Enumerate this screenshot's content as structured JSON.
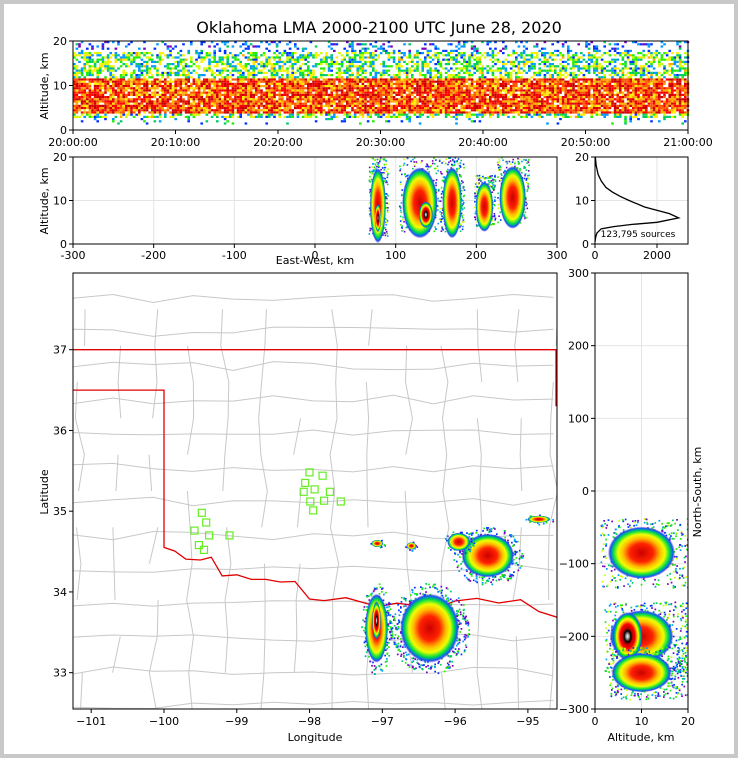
{
  "chart_data": [
    {
      "type": "heatmap",
      "panel": "time-height",
      "title": "Oklahoma LMA 2000-2100 UTC June 28, 2020",
      "ylabel": "Altitude, km",
      "ylim": [
        0,
        20
      ],
      "yticks": [
        "0",
        "10",
        "20"
      ],
      "xticks": [
        "20:00:00",
        "20:10:00",
        "20:20:00",
        "20:30:00",
        "20:40:00",
        "20:50:00",
        "21:00:00"
      ],
      "xlim_minutes": [
        0,
        60
      ],
      "density_band_km": [
        3,
        18
      ],
      "core_band_km": [
        4,
        12
      ]
    },
    {
      "type": "heatmap",
      "panel": "east-west-altitude",
      "xlabel": "East-West, km",
      "ylabel": "Altitude, km",
      "xlim": [
        -300,
        300
      ],
      "ylim": [
        0,
        20
      ],
      "xticks": [
        "-300",
        "-200",
        "-100",
        "0",
        "100",
        "200",
        "300"
      ],
      "yticks": [
        "0",
        "10",
        "20"
      ],
      "cells": [
        {
          "x": 78,
          "y0": 2,
          "y1": 20,
          "w": 18
        },
        {
          "x": 130,
          "y0": 3,
          "y1": 20,
          "w": 40
        },
        {
          "x": 170,
          "y0": 3,
          "y1": 20,
          "w": 22
        },
        {
          "x": 210,
          "y0": 4,
          "y1": 16,
          "w": 20
        },
        {
          "x": 245,
          "y0": 5,
          "y1": 20,
          "w": 30
        }
      ]
    },
    {
      "type": "line",
      "panel": "altitude-histogram",
      "annotation": "123,795 sources",
      "xlim": [
        0,
        3000
      ],
      "ylim": [
        0,
        20
      ],
      "xticks": [
        "0",
        "2000"
      ],
      "yticks": [
        "0",
        "10",
        "20"
      ],
      "x": [
        0,
        20,
        60,
        200,
        600,
        1200,
        2000,
        2700,
        2400,
        1600,
        1100,
        800,
        550,
        350,
        200,
        100,
        40,
        10
      ],
      "y": [
        0.5,
        1.5,
        2.5,
        3.5,
        4.0,
        4.5,
        5.0,
        6.0,
        7.0,
        8.5,
        10.0,
        11.0,
        12.0,
        13.0,
        14.5,
        16.0,
        18.0,
        20.0
      ]
    },
    {
      "type": "heatmap",
      "panel": "plan-view-map",
      "xlabel": "Longitude",
      "ylabel": "Latitude",
      "xlim": [
        -101.25,
        -94.6
      ],
      "ylim": [
        32.55,
        37.95
      ],
      "xticks": [
        "−101",
        "−100",
        "−99",
        "−98",
        "−97",
        "−96",
        "−95"
      ],
      "yticks": [
        "33",
        "34",
        "35",
        "36",
        "37"
      ],
      "stations": [
        [
          -99.48,
          34.98
        ],
        [
          -99.42,
          34.86
        ],
        [
          -99.58,
          34.76
        ],
        [
          -99.38,
          34.7
        ],
        [
          -99.52,
          34.58
        ],
        [
          -99.45,
          34.52
        ],
        [
          -99.1,
          34.7
        ],
        [
          -98.0,
          35.48
        ],
        [
          -98.06,
          35.35
        ],
        [
          -97.82,
          35.44
        ],
        [
          -98.08,
          35.24
        ],
        [
          -97.93,
          35.27
        ],
        [
          -97.72,
          35.24
        ],
        [
          -97.99,
          35.12
        ],
        [
          -97.8,
          35.13
        ],
        [
          -97.57,
          35.12
        ],
        [
          -97.95,
          35.01
        ]
      ],
      "storms": [
        {
          "lon": -97.08,
          "lat": 33.55,
          "w": 0.35,
          "h": 0.95
        },
        {
          "lon": -96.35,
          "lat": 33.55,
          "w": 0.9,
          "h": 0.95
        },
        {
          "lon": -95.55,
          "lat": 34.45,
          "w": 0.8,
          "h": 0.6
        },
        {
          "lon": -95.95,
          "lat": 34.62,
          "w": 0.35,
          "h": 0.25
        },
        {
          "lon": -97.07,
          "lat": 34.6,
          "w": 0.18,
          "h": 0.1
        },
        {
          "lon": -96.6,
          "lat": 34.57,
          "w": 0.15,
          "h": 0.1
        },
        {
          "lon": -94.85,
          "lat": 34.9,
          "w": 0.35,
          "h": 0.1
        }
      ]
    },
    {
      "type": "heatmap",
      "panel": "altitude-north-south",
      "xlabel": "Altitude, km",
      "ylabel": "North-South, km",
      "xlim": [
        0,
        20
      ],
      "ylim": [
        -300,
        300
      ],
      "xticks": [
        "0",
        "10",
        "20"
      ],
      "yticks": [
        "−300",
        "−200",
        "−100",
        "0",
        "100",
        "200",
        "300"
      ],
      "cells": [
        {
          "y": -85,
          "h": 80,
          "x0": 1,
          "x1": 20
        },
        {
          "y": -200,
          "h": 80,
          "x0": 2,
          "x1": 20
        },
        {
          "y": -250,
          "h": 60,
          "x0": 3,
          "x1": 20
        }
      ]
    }
  ],
  "colors": {
    "border_red": "#e00000",
    "county_gray": "#c8c8c8",
    "station_green": "#66ee22"
  }
}
